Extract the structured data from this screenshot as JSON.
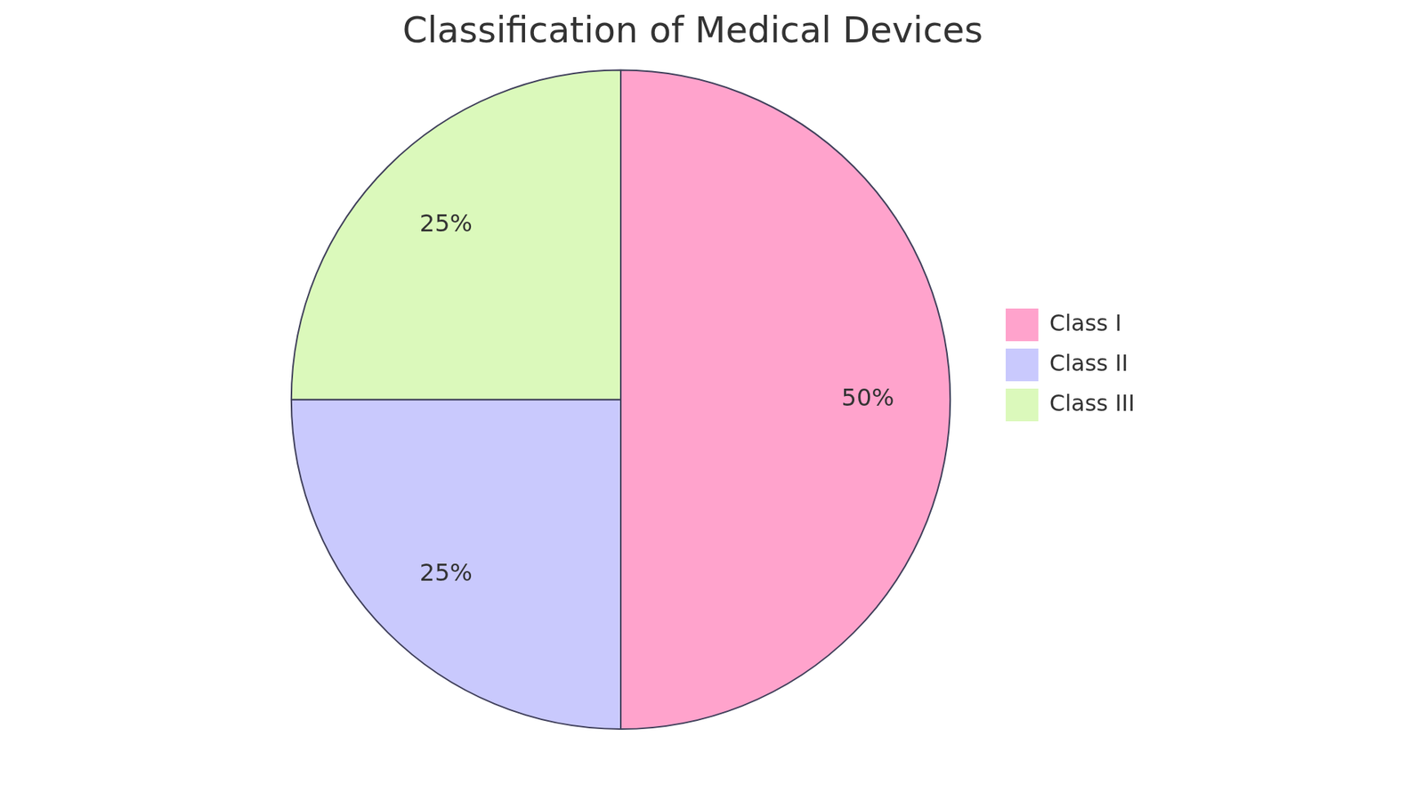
{
  "chart_data": {
    "type": "pie",
    "title": "Classification of Medical Devices",
    "categories": [
      "Class I",
      "Class II",
      "Class III"
    ],
    "values": [
      50,
      25,
      25
    ],
    "value_labels": [
      "50%",
      "25%",
      "25%"
    ],
    "colors": [
      "#ffa3cc",
      "#c9c9fd",
      "#dbf9bb"
    ],
    "legend": "right",
    "data_labels": true
  }
}
